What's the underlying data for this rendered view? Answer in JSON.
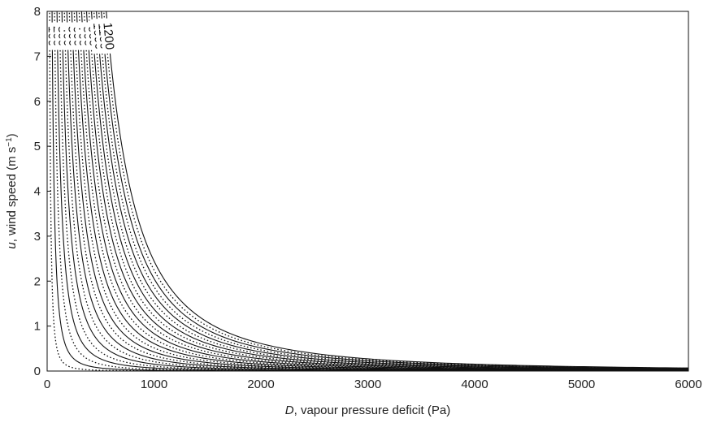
{
  "chart_data": {
    "type": "line",
    "title": "",
    "xlabel": {
      "var": "D",
      "rest": ", vapour pressure deficit (Pa)"
    },
    "ylabel": {
      "var": "u",
      "rest": ", wind speed (m s",
      "sup": "−1",
      "close": ")"
    },
    "xlim": [
      0,
      6000
    ],
    "ylim": [
      0,
      8
    ],
    "xticks": [
      0,
      1000,
      2000,
      3000,
      4000,
      5000,
      6000
    ],
    "yticks": [
      0,
      1,
      2,
      3,
      4,
      5,
      6,
      7,
      8
    ],
    "grid": false,
    "legend": "none",
    "model": "contours of u*D*D = K*(value)^2, K = 1.7",
    "series": [
      {
        "label": "",
        "level": 50,
        "style": "dotted"
      },
      {
        "label": "100",
        "level": 100,
        "style": "solid"
      },
      {
        "label": "",
        "level": 150,
        "style": "dotted"
      },
      {
        "label": "200",
        "level": 200,
        "style": "solid"
      },
      {
        "label": "",
        "level": 250,
        "style": "dotted"
      },
      {
        "label": "300",
        "level": 300,
        "style": "solid"
      },
      {
        "label": "",
        "level": 350,
        "style": "dotted"
      },
      {
        "label": "400",
        "level": 400,
        "style": "solid"
      },
      {
        "label": "",
        "level": 450,
        "style": "dotted"
      },
      {
        "label": "500",
        "level": 500,
        "style": "solid"
      },
      {
        "label": "",
        "level": 550,
        "style": "dotted"
      },
      {
        "label": "600",
        "level": 600,
        "style": "solid"
      },
      {
        "label": "",
        "level": 650,
        "style": "dotted"
      },
      {
        "label": "700",
        "level": 700,
        "style": "solid"
      },
      {
        "label": "",
        "level": 750,
        "style": "dotted"
      },
      {
        "label": "800",
        "level": 800,
        "style": "solid"
      },
      {
        "label": "",
        "level": 850,
        "style": "dotted"
      },
      {
        "label": "900",
        "level": 900,
        "style": "solid"
      },
      {
        "label": "",
        "level": 950,
        "style": "dotted"
      },
      {
        "label": "1000",
        "level": 1000,
        "style": "solid"
      },
      {
        "label": "",
        "level": 1050,
        "style": "dotted"
      },
      {
        "label": "1100",
        "level": 1100,
        "style": "solid"
      },
      {
        "label": "",
        "level": 1150,
        "style": "dotted"
      },
      {
        "label": "1200",
        "level": 1200,
        "style": "solid"
      }
    ]
  }
}
